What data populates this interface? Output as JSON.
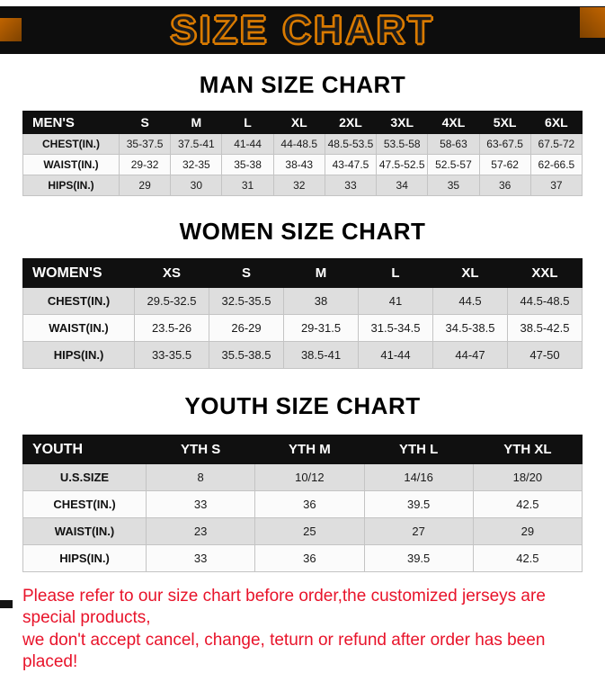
{
  "banner": {
    "title": "SIZE CHART"
  },
  "sections": [
    {
      "id": "men",
      "heading": "MAN SIZE CHART",
      "table": {
        "header": [
          "MEN'S",
          "S",
          "M",
          "L",
          "XL",
          "2XL",
          "3XL",
          "4XL",
          "5XL",
          "6XL"
        ],
        "rows": [
          [
            "CHEST(IN.)",
            "35-37.5",
            "37.5-41",
            "41-44",
            "44-48.5",
            "48.5-53.5",
            "53.5-58",
            "58-63",
            "63-67.5",
            "67.5-72"
          ],
          [
            "WAIST(IN.)",
            "29-32",
            "32-35",
            "35-38",
            "38-43",
            "43-47.5",
            "47.5-52.5",
            "52.5-57",
            "57-62",
            "62-66.5"
          ],
          [
            "HIPS(IN.)",
            "29",
            "30",
            "31",
            "32",
            "33",
            "34",
            "35",
            "36",
            "37"
          ]
        ]
      }
    },
    {
      "id": "women",
      "heading": "WOMEN SIZE CHART",
      "table": {
        "header": [
          "WOMEN'S",
          "XS",
          "S",
          "M",
          "L",
          "XL",
          "XXL"
        ],
        "rows": [
          [
            "CHEST(IN.)",
            "29.5-32.5",
            "32.5-35.5",
            "38",
            "41",
            "44.5",
            "44.5-48.5"
          ],
          [
            "WAIST(IN.)",
            "23.5-26",
            "26-29",
            "29-31.5",
            "31.5-34.5",
            "34.5-38.5",
            "38.5-42.5"
          ],
          [
            "HIPS(IN.)",
            "33-35.5",
            "35.5-38.5",
            "38.5-41",
            "41-44",
            "44-47",
            "47-50"
          ]
        ]
      }
    },
    {
      "id": "youth",
      "heading": "YOUTH SIZE CHART",
      "table": {
        "header": [
          "YOUTH",
          "YTH S",
          "YTH M",
          "YTH L",
          "YTH XL"
        ],
        "rows": [
          [
            "U.S.SIZE",
            "8",
            "10/12",
            "14/16",
            "18/20"
          ],
          [
            "CHEST(IN.)",
            "33",
            "36",
            "39.5",
            "42.5"
          ],
          [
            "WAIST(IN.)",
            "23",
            "25",
            "27",
            "29"
          ],
          [
            "HIPS(IN.)",
            "33",
            "36",
            "39.5",
            "42.5"
          ]
        ]
      }
    }
  ],
  "footer": {
    "line1": "Please refer to our size chart before order,the customized jerseys are special products,",
    "line2": "we don't accept cancel, change, teturn or refund after order has been placed!"
  },
  "colors": {
    "banner_bg": "#0d0d0d",
    "banner_outline": "#d97a00",
    "header_row_bg": "#101010",
    "stripe": "#dedede",
    "footer_red": "#e8132a"
  }
}
